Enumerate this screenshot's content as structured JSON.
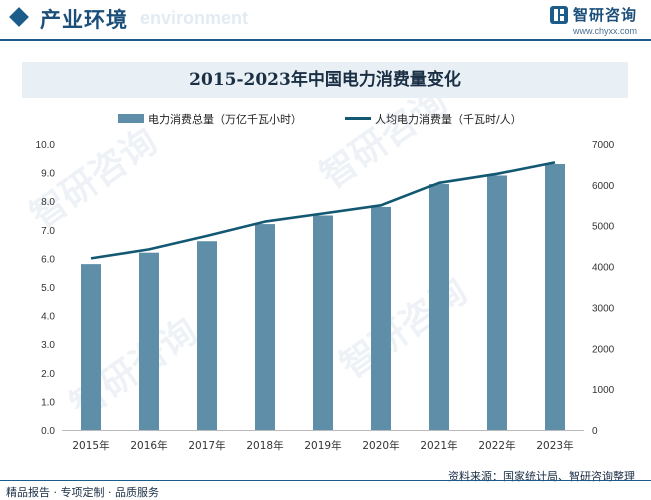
{
  "header": {
    "title": "产业环境",
    "title_ghost": "environment",
    "brand_name": "智研咨询",
    "brand_url": "www.chyxx.com"
  },
  "footer": {
    "source": "资料来源：国家统计局、智研咨询整理",
    "slogan": "精品报告 · 专项定制 · 品质服务"
  },
  "watermark_text": "智研咨询",
  "colors": {
    "bar": "#5f8fa8",
    "line": "#135873",
    "accent": "#1b5c8a",
    "title_band": "#e8eff5"
  },
  "chart_data": {
    "type": "bar",
    "title": "2015-2023年中国电力消费量变化",
    "categories": [
      "2015年",
      "2016年",
      "2017年",
      "2018年",
      "2019年",
      "2020年",
      "2021年",
      "2022年",
      "2023年"
    ],
    "series": [
      {
        "name": "电力消费总量（万亿千瓦小时）",
        "type": "bar",
        "axis": "left",
        "values": [
          5.8,
          6.2,
          6.6,
          7.2,
          7.5,
          7.8,
          8.6,
          8.9,
          9.3
        ]
      },
      {
        "name": "人均电力消费量（千瓦时/人）",
        "type": "line",
        "axis": "right",
        "values": [
          4200,
          4420,
          4750,
          5100,
          5300,
          5500,
          6050,
          6270,
          6550
        ]
      }
    ],
    "y_left": {
      "min": 0,
      "max": 10,
      "ticks": [
        "0.0",
        "1.0",
        "2.0",
        "3.0",
        "4.0",
        "5.0",
        "6.0",
        "7.0",
        "8.0",
        "9.0",
        "10.0"
      ]
    },
    "y_right": {
      "min": 0,
      "max": 7000,
      "ticks": [
        "0",
        "1000",
        "2000",
        "3000",
        "4000",
        "5000",
        "6000",
        "7000"
      ]
    },
    "legend_position": "top-left",
    "grid": false
  }
}
